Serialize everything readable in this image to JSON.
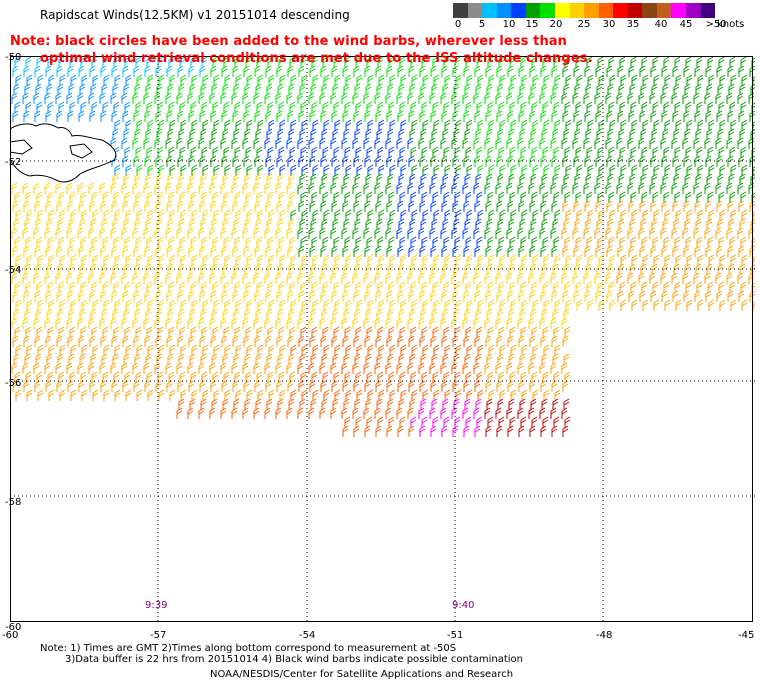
{
  "title": "Rapidscat Winds(12.5KM) v1 20151014 descending",
  "legend": {
    "colors": [
      "#404040",
      "#8c8c8c",
      "#00c0ff",
      "#0090ff",
      "#0040ff",
      "#00a000",
      "#00e000",
      "#ffff00",
      "#ffd000",
      "#ffa000",
      "#ff6000",
      "#ff0000",
      "#c00000",
      "#8b4513",
      "#c06020",
      "#ff00ff",
      "#a000c0",
      "#400080"
    ],
    "ticks": [
      "0",
      "5",
      "10",
      "15",
      "20",
      "25",
      "30",
      "35",
      "40",
      "45",
      ">50"
    ],
    "unit": "knots"
  },
  "notice": {
    "line1": "Note: black circles have been added to the wind barbs, wherever less than",
    "line2": "optimal wind retrieval conditions are met due to the ISS altitude changes."
  },
  "map": {
    "lat_labels": [
      "-50",
      "-52",
      "-54",
      "-56",
      "-58",
      "-60"
    ],
    "lon_labels": [
      "-60",
      "-57",
      "-54",
      "-51",
      "-48",
      "-45"
    ],
    "time_labels": [
      "9:39",
      "9:40"
    ]
  },
  "footer": {
    "note_line1": "Note: 1) Times are GMT 2)Times along bottom correspond to measurement at -50S",
    "note_line2": "3)Data buffer is 22 hrs from 20151014 4) Black wind barbs indicate possible contamination",
    "credit": "NOAA/NESDIS/Center for Satellite Applications and Research"
  }
}
